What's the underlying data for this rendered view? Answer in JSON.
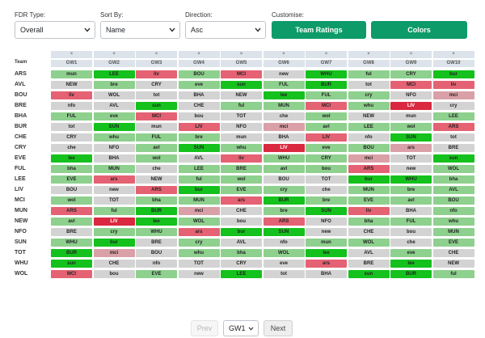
{
  "controls": {
    "fdr_type": {
      "label": "FDR Type:",
      "value": "Overall"
    },
    "sort_by": {
      "label": "Sort By:",
      "value": "Name"
    },
    "direction": {
      "label": "Direction:",
      "value": "Asc"
    },
    "customise": {
      "label": "Customise:",
      "team_ratings": "Team Ratings",
      "colors": "Colors"
    }
  },
  "grid": {
    "team_header": "Team",
    "close_symbol": "×",
    "gameweeks": [
      "GW1",
      "GW2",
      "GW3",
      "GW4",
      "GW5",
      "GW6",
      "GW7",
      "GW8",
      "GW9",
      "GW10"
    ],
    "colors": {
      "f1": "#14c11d",
      "f2": "#8ed08e",
      "f3": "#d3d3d3",
      "f4": "#daa0a7",
      "f5": "#e46273",
      "f5b": "#d9283f"
    },
    "rows": [
      {
        "team": "ARS",
        "fixtures": [
          [
            "mun",
            "f2"
          ],
          [
            "LEE",
            "f1"
          ],
          [
            "liv",
            "f5"
          ],
          [
            "BOU",
            "f2"
          ],
          [
            "MCI",
            "f5"
          ],
          [
            "new",
            "f3"
          ],
          [
            "WHU",
            "f1"
          ],
          [
            "ful",
            "f2"
          ],
          [
            "CRY",
            "f2"
          ],
          [
            "bur",
            "f1"
          ]
        ]
      },
      {
        "team": "AVL",
        "fixtures": [
          [
            "NEW",
            "f3"
          ],
          [
            "bre",
            "f2"
          ],
          [
            "CRY",
            "f3"
          ],
          [
            "eve",
            "f2"
          ],
          [
            "sun",
            "f1"
          ],
          [
            "FUL",
            "f2"
          ],
          [
            "BUR",
            "f1"
          ],
          [
            "tot",
            "f3"
          ],
          [
            "MCI",
            "f5"
          ],
          [
            "liv",
            "f5"
          ]
        ]
      },
      {
        "team": "BOU",
        "fixtures": [
          [
            "liv",
            "f5"
          ],
          [
            "WOL",
            "f3"
          ],
          [
            "tot",
            "f3"
          ],
          [
            "BHA",
            "f3"
          ],
          [
            "NEW",
            "f3"
          ],
          [
            "lee",
            "f1"
          ],
          [
            "FUL",
            "f2"
          ],
          [
            "cry",
            "f2"
          ],
          [
            "NFO",
            "f3"
          ],
          [
            "mci",
            "f4"
          ]
        ]
      },
      {
        "team": "BRE",
        "fixtures": [
          [
            "nfo",
            "f3"
          ],
          [
            "AVL",
            "f3"
          ],
          [
            "sun",
            "f1"
          ],
          [
            "CHE",
            "f3"
          ],
          [
            "ful",
            "f2"
          ],
          [
            "MUN",
            "f2"
          ],
          [
            "MCI",
            "f5"
          ],
          [
            "whu",
            "f2"
          ],
          [
            "LIV",
            "f5b"
          ],
          [
            "cry",
            "f3"
          ]
        ]
      },
      {
        "team": "BHA",
        "fixtures": [
          [
            "FUL",
            "f2"
          ],
          [
            "eve",
            "f2"
          ],
          [
            "MCI",
            "f5"
          ],
          [
            "bou",
            "f3"
          ],
          [
            "TOT",
            "f3"
          ],
          [
            "che",
            "f3"
          ],
          [
            "wol",
            "f2"
          ],
          [
            "NEW",
            "f3"
          ],
          [
            "mun",
            "f3"
          ],
          [
            "LEE",
            "f2"
          ]
        ]
      },
      {
        "team": "BUR",
        "fixtures": [
          [
            "tot",
            "f3"
          ],
          [
            "SUN",
            "f1"
          ],
          [
            "mun",
            "f3"
          ],
          [
            "LIV",
            "f5"
          ],
          [
            "NFO",
            "f3"
          ],
          [
            "mci",
            "f4"
          ],
          [
            "avl",
            "f2"
          ],
          [
            "LEE",
            "f2"
          ],
          [
            "wol",
            "f2"
          ],
          [
            "ARS",
            "f5"
          ]
        ]
      },
      {
        "team": "CHE",
        "fixtures": [
          [
            "CRY",
            "f3"
          ],
          [
            "whu",
            "f2"
          ],
          [
            "FUL",
            "f2"
          ],
          [
            "bre",
            "f2"
          ],
          [
            "mun",
            "f3"
          ],
          [
            "BHA",
            "f3"
          ],
          [
            "LIV",
            "f5"
          ],
          [
            "nfo",
            "f3"
          ],
          [
            "SUN",
            "f1"
          ],
          [
            "tot",
            "f3"
          ]
        ]
      },
      {
        "team": "CRY",
        "fixtures": [
          [
            "che",
            "f3"
          ],
          [
            "NFO",
            "f3"
          ],
          [
            "avl",
            "f2"
          ],
          [
            "SUN",
            "f1"
          ],
          [
            "whu",
            "f2"
          ],
          [
            "LIV",
            "f5b"
          ],
          [
            "eve",
            "f2"
          ],
          [
            "BOU",
            "f2"
          ],
          [
            "ars",
            "f4"
          ],
          [
            "BRE",
            "f3"
          ]
        ]
      },
      {
        "team": "EVE",
        "fixtures": [
          [
            "lee",
            "f1"
          ],
          [
            "BHA",
            "f3"
          ],
          [
            "wol",
            "f2"
          ],
          [
            "AVL",
            "f3"
          ],
          [
            "liv",
            "f5"
          ],
          [
            "WHU",
            "f2"
          ],
          [
            "CRY",
            "f2"
          ],
          [
            "mci",
            "f4"
          ],
          [
            "TOT",
            "f3"
          ],
          [
            "sun",
            "f1"
          ]
        ]
      },
      {
        "team": "FUL",
        "fixtures": [
          [
            "bha",
            "f2"
          ],
          [
            "MUN",
            "f2"
          ],
          [
            "che",
            "f3"
          ],
          [
            "LEE",
            "f2"
          ],
          [
            "BRE",
            "f2"
          ],
          [
            "avl",
            "f2"
          ],
          [
            "bou",
            "f2"
          ],
          [
            "ARS",
            "f5"
          ],
          [
            "new",
            "f3"
          ],
          [
            "WOL",
            "f2"
          ]
        ]
      },
      {
        "team": "LEE",
        "fixtures": [
          [
            "EVE",
            "f2"
          ],
          [
            "ars",
            "f5"
          ],
          [
            "NEW",
            "f3"
          ],
          [
            "ful",
            "f2"
          ],
          [
            "wol",
            "f2"
          ],
          [
            "BOU",
            "f3"
          ],
          [
            "TOT",
            "f3"
          ],
          [
            "bur",
            "f1"
          ],
          [
            "WHU",
            "f1"
          ],
          [
            "bha",
            "f2"
          ]
        ]
      },
      {
        "team": "LIV",
        "fixtures": [
          [
            "BOU",
            "f3"
          ],
          [
            "new",
            "f3"
          ],
          [
            "ARS",
            "f5"
          ],
          [
            "bur",
            "f1"
          ],
          [
            "EVE",
            "f2"
          ],
          [
            "cry",
            "f2"
          ],
          [
            "che",
            "f3"
          ],
          [
            "MUN",
            "f2"
          ],
          [
            "bre",
            "f2"
          ],
          [
            "AVL",
            "f2"
          ]
        ]
      },
      {
        "team": "MCI",
        "fixtures": [
          [
            "wol",
            "f2"
          ],
          [
            "TOT",
            "f3"
          ],
          [
            "bha",
            "f2"
          ],
          [
            "MUN",
            "f2"
          ],
          [
            "ars",
            "f5"
          ],
          [
            "BUR",
            "f1"
          ],
          [
            "bre",
            "f2"
          ],
          [
            "EVE",
            "f2"
          ],
          [
            "avl",
            "f2"
          ],
          [
            "BOU",
            "f2"
          ]
        ]
      },
      {
        "team": "MUN",
        "fixtures": [
          [
            "ARS",
            "f5"
          ],
          [
            "ful",
            "f2"
          ],
          [
            "BUR",
            "f1"
          ],
          [
            "mci",
            "f4"
          ],
          [
            "CHE",
            "f3"
          ],
          [
            "bre",
            "f2"
          ],
          [
            "SUN",
            "f1"
          ],
          [
            "liv",
            "f5"
          ],
          [
            "BHA",
            "f3"
          ],
          [
            "nfo",
            "f2"
          ]
        ]
      },
      {
        "team": "NEW",
        "fixtures": [
          [
            "avl",
            "f2"
          ],
          [
            "LIV",
            "f5b"
          ],
          [
            "lee",
            "f1"
          ],
          [
            "WOL",
            "f2"
          ],
          [
            "bou",
            "f3"
          ],
          [
            "ARS",
            "f5"
          ],
          [
            "NFO",
            "f3"
          ],
          [
            "bha",
            "f2"
          ],
          [
            "FUL",
            "f2"
          ],
          [
            "whu",
            "f2"
          ]
        ]
      },
      {
        "team": "NFO",
        "fixtures": [
          [
            "BRE",
            "f3"
          ],
          [
            "cry",
            "f2"
          ],
          [
            "WHU",
            "f2"
          ],
          [
            "ars",
            "f5"
          ],
          [
            "bur",
            "f1"
          ],
          [
            "SUN",
            "f1"
          ],
          [
            "new",
            "f3"
          ],
          [
            "CHE",
            "f3"
          ],
          [
            "bou",
            "f3"
          ],
          [
            "MUN",
            "f2"
          ]
        ]
      },
      {
        "team": "SUN",
        "fixtures": [
          [
            "WHU",
            "f2"
          ],
          [
            "bur",
            "f1"
          ],
          [
            "BRE",
            "f3"
          ],
          [
            "cry",
            "f2"
          ],
          [
            "AVL",
            "f3"
          ],
          [
            "nfo",
            "f3"
          ],
          [
            "mun",
            "f2"
          ],
          [
            "WOL",
            "f2"
          ],
          [
            "che",
            "f3"
          ],
          [
            "EVE",
            "f2"
          ]
        ]
      },
      {
        "team": "TOT",
        "fixtures": [
          [
            "BUR",
            "f1"
          ],
          [
            "mci",
            "f4"
          ],
          [
            "BOU",
            "f3"
          ],
          [
            "whu",
            "f2"
          ],
          [
            "bha",
            "f2"
          ],
          [
            "WOL",
            "f2"
          ],
          [
            "lee",
            "f1"
          ],
          [
            "AVL",
            "f3"
          ],
          [
            "eve",
            "f2"
          ],
          [
            "CHE",
            "f3"
          ]
        ]
      },
      {
        "team": "WHU",
        "fixtures": [
          [
            "sun",
            "f1"
          ],
          [
            "CHE",
            "f3"
          ],
          [
            "nfo",
            "f3"
          ],
          [
            "TOT",
            "f3"
          ],
          [
            "CRY",
            "f3"
          ],
          [
            "eve",
            "f3"
          ],
          [
            "ars",
            "f5"
          ],
          [
            "BRE",
            "f3"
          ],
          [
            "lee",
            "f1"
          ],
          [
            "NEW",
            "f3"
          ]
        ]
      },
      {
        "team": "WOL",
        "fixtures": [
          [
            "MCI",
            "f5"
          ],
          [
            "bou",
            "f3"
          ],
          [
            "EVE",
            "f2"
          ],
          [
            "new",
            "f3"
          ],
          [
            "LEE",
            "f1"
          ],
          [
            "tot",
            "f3"
          ],
          [
            "BHA",
            "f3"
          ],
          [
            "sun",
            "f1"
          ],
          [
            "BUR",
            "f1"
          ],
          [
            "ful",
            "f2"
          ]
        ]
      }
    ]
  },
  "pagination": {
    "prev": "Prev",
    "current": "GW1",
    "next": "Next"
  }
}
